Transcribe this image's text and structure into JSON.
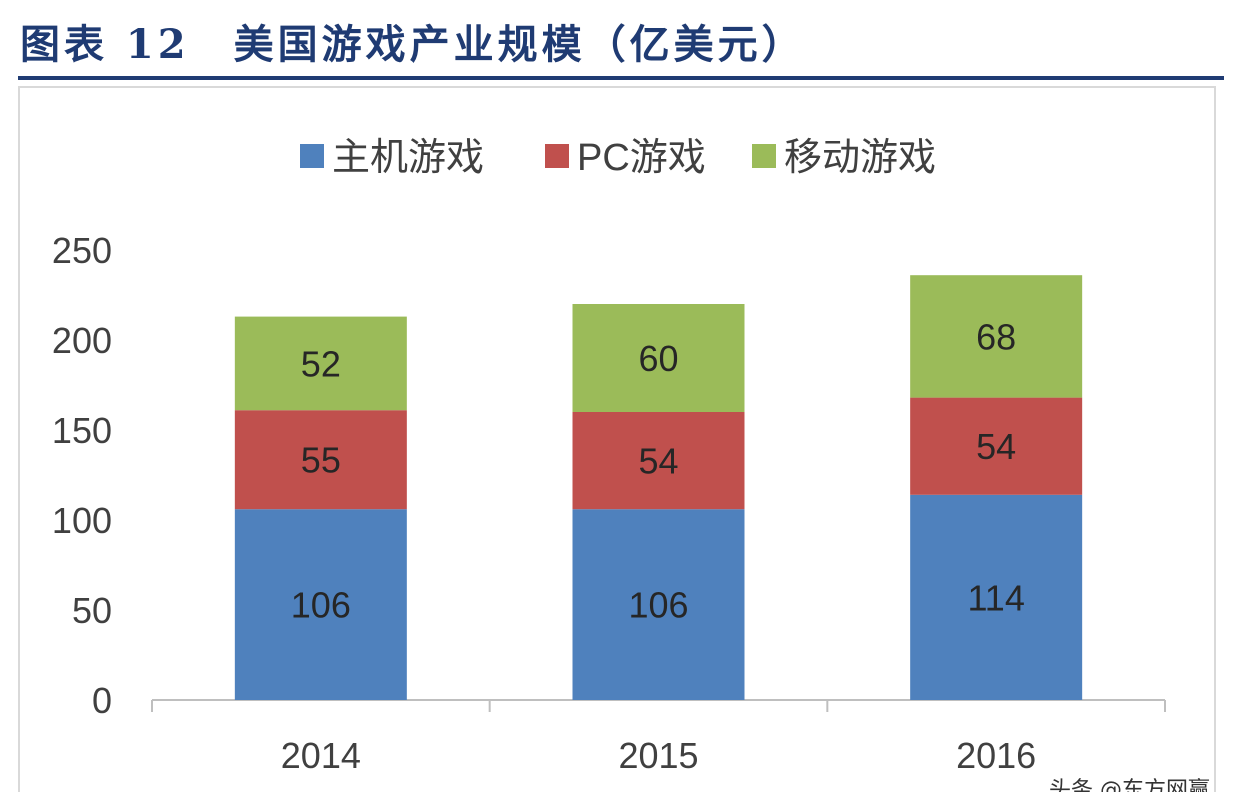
{
  "figure_title": "图表 12　美国游戏产业规模（亿美元）",
  "watermark": "头条 @东方网赢",
  "colors": {
    "title": "#1f3b73",
    "console": "#4f81bd",
    "pc": "#c0504d",
    "mobile": "#9bbb59",
    "axis": "#bfbfbf",
    "label_text": "#262626",
    "tick_text": "#404040"
  },
  "chart_data": {
    "type": "bar",
    "stacked": true,
    "title": "",
    "xlabel": "",
    "ylabel": "",
    "categories": [
      "2014",
      "2015",
      "2016"
    ],
    "series": [
      {
        "name": "主机游戏",
        "color": "#4f81bd",
        "values": [
          106,
          106,
          114
        ]
      },
      {
        "name": "PC游戏",
        "color": "#c0504d",
        "values": [
          55,
          54,
          54
        ]
      },
      {
        "name": "移动游戏",
        "color": "#9bbb59",
        "values": [
          52,
          60,
          68
        ]
      }
    ],
    "ylim": [
      0,
      250
    ],
    "yticks": [
      0,
      50,
      100,
      150,
      200,
      250
    ],
    "grid": false,
    "legend_position": "top-center",
    "data_labels": true
  }
}
